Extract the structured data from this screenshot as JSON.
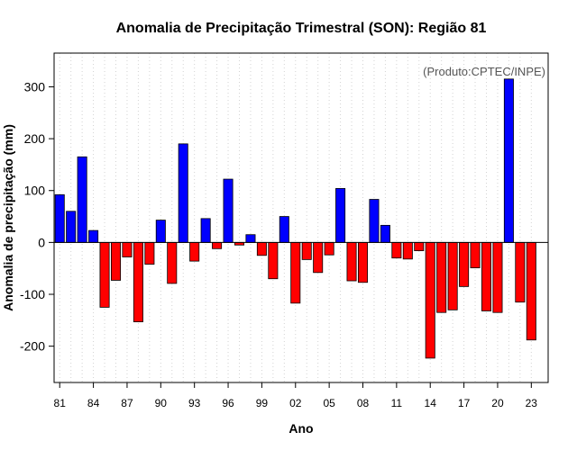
{
  "chart_data": {
    "type": "bar",
    "title": "Anomalia de Precipitação Trimestral (SON): Região 81",
    "annotation": "(Produto:CPTEC/INPE)",
    "xlabel": "Ano",
    "ylabel": "Anomalia de precipitação (mm)",
    "ylim": [
      -270,
      365
    ],
    "yticks": [
      -200,
      -100,
      0,
      100,
      200,
      300
    ],
    "xlim": [
      0.5,
      44.5
    ],
    "grid": "vertical-dotted",
    "positive_color": "#0000ff",
    "negative_color": "#ff0000",
    "years": [
      "81",
      "82",
      "83",
      "84",
      "85",
      "86",
      "87",
      "88",
      "89",
      "90",
      "91",
      "92",
      "93",
      "94",
      "95",
      "96",
      "97",
      "98",
      "99",
      "00",
      "01",
      "02",
      "03",
      "04",
      "05",
      "06",
      "07",
      "08",
      "09",
      "10",
      "11",
      "12",
      "13",
      "14",
      "15",
      "16",
      "17",
      "18",
      "19",
      "20",
      "21",
      "22",
      "23"
    ],
    "values": [
      92,
      60,
      165,
      23,
      -125,
      -73,
      -28,
      -153,
      -42,
      43,
      -79,
      190,
      -36,
      46,
      -12,
      122,
      -5,
      15,
      -25,
      -70,
      50,
      -117,
      -33,
      -58,
      -24,
      104,
      -74,
      -77,
      83,
      33,
      -30,
      -32,
      -16,
      -223,
      -135,
      -130,
      -85,
      -49,
      -132,
      -135,
      315,
      -115,
      -188
    ],
    "xtick_labels": [
      {
        "label": "81",
        "index": 0
      },
      {
        "label": "84",
        "index": 3
      },
      {
        "label": "87",
        "index": 6
      },
      {
        "label": "90",
        "index": 9
      },
      {
        "label": "93",
        "index": 12
      },
      {
        "label": "96",
        "index": 15
      },
      {
        "label": "99",
        "index": 18
      },
      {
        "label": "02",
        "index": 21
      },
      {
        "label": "05",
        "index": 24
      },
      {
        "label": "08",
        "index": 27
      },
      {
        "label": "11",
        "index": 30
      },
      {
        "label": "14",
        "index": 33
      },
      {
        "label": "17",
        "index": 36
      },
      {
        "label": "20",
        "index": 39
      },
      {
        "label": "23",
        "index": 42
      }
    ]
  }
}
